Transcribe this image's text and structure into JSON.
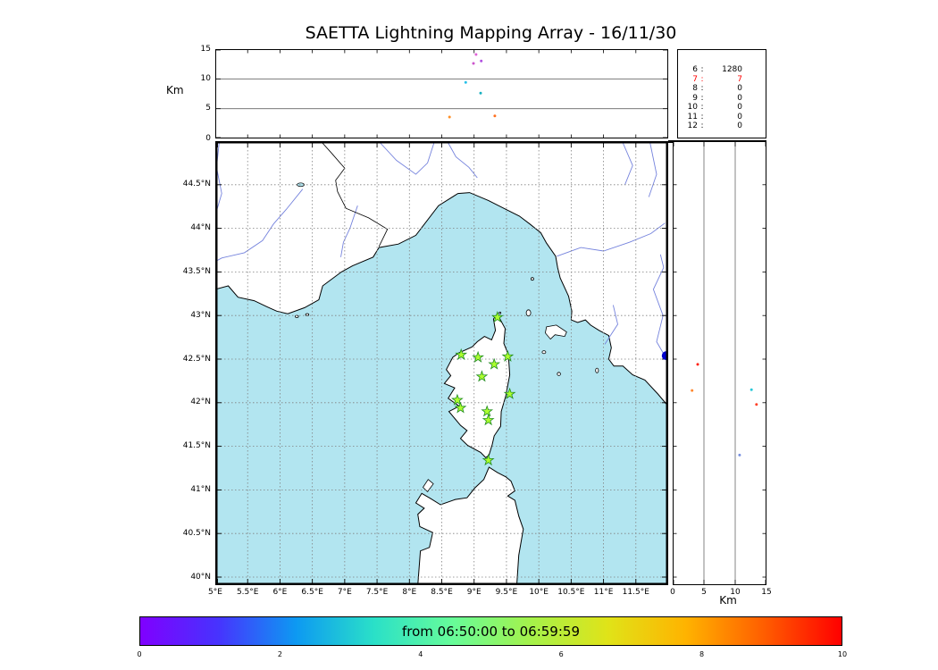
{
  "title": "SAETTA Lightning Mapping Array - 16/11/30",
  "chart_data": [
    {
      "type": "scatter",
      "panel": "altitude-longitude",
      "ylabel": "Km",
      "ylim": [
        0,
        15
      ],
      "xlim": [
        5,
        12
      ],
      "yticks": [
        {
          "v": 0,
          "label": "0"
        },
        {
          "v": 5,
          "label": "5"
        },
        {
          "v": 10,
          "label": "10"
        },
        {
          "v": 15,
          "label": "15"
        }
      ],
      "grid_y": [
        5,
        10
      ],
      "points": [
        {
          "lon": 9.03,
          "alt": 14.1,
          "color": "#e060d8"
        },
        {
          "lon": 9.11,
          "alt": 13.0,
          "color": "#b050e0"
        },
        {
          "lon": 8.99,
          "alt": 12.6,
          "color": "#cc55cc"
        },
        {
          "lon": 8.87,
          "alt": 9.4,
          "color": "#28c0e8"
        },
        {
          "lon": 9.1,
          "alt": 7.6,
          "color": "#18b0c0"
        },
        {
          "lon": 8.62,
          "alt": 3.6,
          "color": "#ff9028"
        },
        {
          "lon": 9.32,
          "alt": 3.8,
          "color": "#ff7020"
        }
      ]
    },
    {
      "type": "table",
      "panel": "source-counts",
      "rows": [
        {
          "level": "6",
          "count": "1280",
          "color": "#000000"
        },
        {
          "level": "7",
          "count": "7",
          "color": "#ff0000"
        },
        {
          "level": "8",
          "count": "0",
          "color": "#000000"
        },
        {
          "level": "9",
          "count": "0",
          "color": "#000000"
        },
        {
          "level": "10",
          "count": "0",
          "color": "#000000"
        },
        {
          "level": "11",
          "count": "0",
          "color": "#000000"
        },
        {
          "level": "12",
          "count": "0",
          "color": "#000000"
        }
      ]
    },
    {
      "type": "scatter",
      "panel": "map",
      "xlim": [
        5,
        12
      ],
      "ylim": [
        39.91,
        45.0
      ],
      "sea_color": "#b2e5f0",
      "land_color": "#ffffff",
      "river_color": "#7583dd",
      "station_color": "#adff2f",
      "station_edge_color": "#1f8b1f",
      "lat_ticks": [
        {
          "v": 44.5,
          "label": "44.5°N"
        },
        {
          "v": 44,
          "label": "44°N"
        },
        {
          "v": 43.5,
          "label": "43.5°N"
        },
        {
          "v": 43,
          "label": "43°N"
        },
        {
          "v": 42.5,
          "label": "42.5°N"
        },
        {
          "v": 42,
          "label": "42°N"
        },
        {
          "v": 41.5,
          "label": "41.5°N"
        },
        {
          "v": 41,
          "label": "41°N"
        },
        {
          "v": 40.5,
          "label": "40.5°N"
        },
        {
          "v": 40,
          "label": "40°N"
        }
      ],
      "lon_ticks": [
        {
          "v": 5,
          "label": "5°E"
        },
        {
          "v": 5.5,
          "label": "5.5°E"
        },
        {
          "v": 6,
          "label": "6°E"
        },
        {
          "v": 6.5,
          "label": "6.5°E"
        },
        {
          "v": 7,
          "label": "7°E"
        },
        {
          "v": 7.5,
          "label": "7.5°E"
        },
        {
          "v": 8,
          "label": "8°E"
        },
        {
          "v": 8.5,
          "label": "8.5°E"
        },
        {
          "v": 9,
          "label": "9°E"
        },
        {
          "v": 9.5,
          "label": "9.5°E"
        },
        {
          "v": 10,
          "label": "10°E"
        },
        {
          "v": 10.5,
          "label": "10.5°E"
        },
        {
          "v": 11,
          "label": "11°E"
        },
        {
          "v": 11.5,
          "label": "11.5°E"
        }
      ],
      "stations": [
        [
          9.36,
          42.98
        ],
        [
          8.8,
          42.55
        ],
        [
          9.06,
          42.52
        ],
        [
          9.31,
          42.44
        ],
        [
          9.52,
          42.53
        ],
        [
          9.12,
          42.3
        ],
        [
          9.55,
          42.1
        ],
        [
          8.74,
          42.03
        ],
        [
          8.79,
          41.94
        ],
        [
          9.2,
          41.9
        ],
        [
          9.22,
          41.8
        ],
        [
          9.22,
          41.34
        ]
      ],
      "points": [
        {
          "lon": 11.97,
          "lat": 42.54,
          "color": "#0000cd",
          "r": 5
        }
      ]
    },
    {
      "type": "scatter",
      "panel": "altitude-latitude",
      "xlabel": "Km",
      "xlim": [
        0,
        15
      ],
      "xticks": [
        {
          "v": 0,
          "label": "0"
        },
        {
          "v": 5,
          "label": "5"
        },
        {
          "v": 10,
          "label": "10"
        },
        {
          "v": 15,
          "label": "15"
        }
      ],
      "grid_x": [
        5,
        10
      ],
      "points": [
        {
          "km": 4.0,
          "lat": 42.44,
          "color": "#ff2010"
        },
        {
          "km": 3.1,
          "lat": 42.14,
          "color": "#ff8830"
        },
        {
          "km": 12.6,
          "lat": 42.15,
          "color": "#28c8d8"
        },
        {
          "km": 13.4,
          "lat": 41.98,
          "color": "#ff4028"
        },
        {
          "km": 10.7,
          "lat": 41.4,
          "color": "#7890e0"
        }
      ]
    },
    {
      "type": "colorbar",
      "panel": "time-colorbar",
      "label": "from 06:50:00 to 06:59:59",
      "range": [
        0,
        10
      ],
      "ticks": [
        {
          "v": 0,
          "label": "0"
        },
        {
          "v": 2,
          "label": "2"
        },
        {
          "v": 4,
          "label": "4"
        },
        {
          "v": 6,
          "label": "6"
        },
        {
          "v": 8,
          "label": "8"
        },
        {
          "v": 10,
          "label": "10"
        }
      ],
      "gradient": [
        "#8000ff",
        "#4733fe",
        "#0d99f2",
        "#2ae0c8",
        "#66fc9a",
        "#a4f24b",
        "#e0e318",
        "#ffb300",
        "#ff5e00",
        "#ff0000"
      ]
    }
  ]
}
